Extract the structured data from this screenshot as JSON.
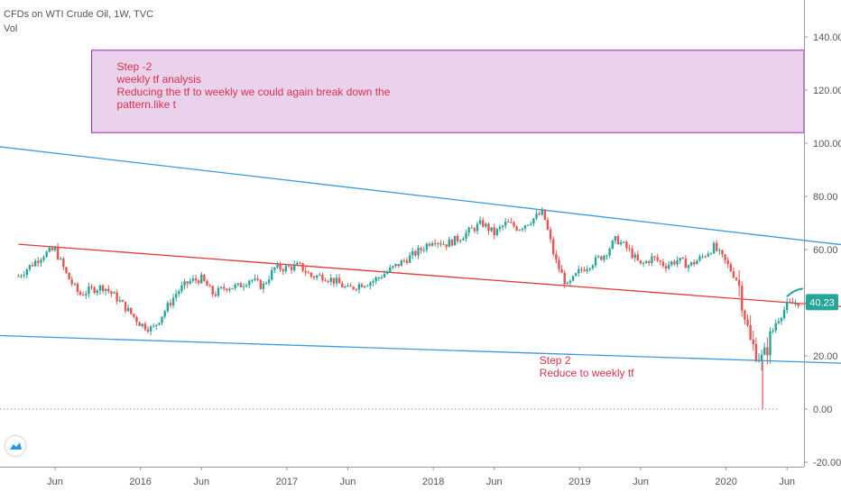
{
  "header": {
    "title": "CFDs on WTI Crude Oil, 1W, TVC",
    "volume_label": "Vol"
  },
  "price_badge": "40.23",
  "colors": {
    "up": "#26a69a",
    "down": "#ef5350",
    "trend_blue": "#3a9ae0",
    "trend_red": "#e53935",
    "note_box_fill": "#ead1ec",
    "note_box_border": "#9c27b0",
    "note_text": "#d8324a",
    "badge": "#26a69a"
  },
  "notes": {
    "box": [
      "Step -2",
      "weekly tf analysis",
      "Reducing the tf  to weekly we could again break down the",
      "pattern.like t"
    ],
    "step2": [
      "Step 2",
      "Reduce to weekly tf"
    ]
  },
  "chart_data": {
    "type": "candlestick",
    "title": "CFDs on WTI Crude Oil, 1W, TVC",
    "x_tick_labels": [
      "Jun",
      "2016",
      "Jun",
      "2017",
      "Jun",
      "2018",
      "Jun",
      "2019",
      "Jun",
      "2020",
      "Jun"
    ],
    "x_tick_dates": [
      "2015-06",
      "2016-01",
      "2016-06",
      "2017-01",
      "2017-06",
      "2018-01",
      "2018-06",
      "2019-01",
      "2019-06",
      "2020-01",
      "2020-06"
    ],
    "y_tick_labels": [
      "140.00",
      "120.00",
      "100.00",
      "80.00",
      "60.00",
      "40.00",
      "20.00",
      "0.00",
      "-20.00"
    ],
    "ylim": [
      -22,
      150
    ],
    "last_price": 40.23,
    "price_path": [
      {
        "t": "2015-03",
        "p": 50
      },
      {
        "t": "2015-04",
        "p": 54
      },
      {
        "t": "2015-05",
        "p": 58
      },
      {
        "t": "2015-06",
        "p": 60
      },
      {
        "t": "2015-07",
        "p": 50
      },
      {
        "t": "2015-08",
        "p": 43
      },
      {
        "t": "2015-09",
        "p": 45
      },
      {
        "t": "2015-10",
        "p": 46
      },
      {
        "t": "2015-11",
        "p": 42
      },
      {
        "t": "2015-12",
        "p": 37
      },
      {
        "t": "2016-01",
        "p": 32
      },
      {
        "t": "2016-02",
        "p": 30
      },
      {
        "t": "2016-03",
        "p": 37
      },
      {
        "t": "2016-04",
        "p": 44
      },
      {
        "t": "2016-05",
        "p": 48
      },
      {
        "t": "2016-06",
        "p": 49
      },
      {
        "t": "2016-07",
        "p": 43
      },
      {
        "t": "2016-08",
        "p": 46
      },
      {
        "t": "2016-09",
        "p": 46
      },
      {
        "t": "2016-10",
        "p": 49
      },
      {
        "t": "2016-11",
        "p": 46
      },
      {
        "t": "2016-12",
        "p": 53
      },
      {
        "t": "2017-01",
        "p": 53
      },
      {
        "t": "2017-02",
        "p": 54
      },
      {
        "t": "2017-03",
        "p": 50
      },
      {
        "t": "2017-04",
        "p": 50
      },
      {
        "t": "2017-05",
        "p": 48
      },
      {
        "t": "2017-06",
        "p": 45
      },
      {
        "t": "2017-07",
        "p": 47
      },
      {
        "t": "2017-08",
        "p": 48
      },
      {
        "t": "2017-09",
        "p": 51
      },
      {
        "t": "2017-10",
        "p": 54
      },
      {
        "t": "2017-11",
        "p": 57
      },
      {
        "t": "2017-12",
        "p": 60
      },
      {
        "t": "2018-01",
        "p": 64
      },
      {
        "t": "2018-02",
        "p": 62
      },
      {
        "t": "2018-03",
        "p": 64
      },
      {
        "t": "2018-04",
        "p": 67
      },
      {
        "t": "2018-05",
        "p": 70
      },
      {
        "t": "2018-06",
        "p": 66
      },
      {
        "t": "2018-07",
        "p": 70
      },
      {
        "t": "2018-08",
        "p": 68
      },
      {
        "t": "2018-09",
        "p": 71
      },
      {
        "t": "2018-10",
        "p": 74
      },
      {
        "t": "2018-11",
        "p": 56
      },
      {
        "t": "2018-12",
        "p": 46
      },
      {
        "t": "2019-01",
        "p": 52
      },
      {
        "t": "2019-02",
        "p": 55
      },
      {
        "t": "2019-03",
        "p": 58
      },
      {
        "t": "2019-04",
        "p": 64
      },
      {
        "t": "2019-05",
        "p": 60
      },
      {
        "t": "2019-06",
        "p": 54
      },
      {
        "t": "2019-07",
        "p": 57
      },
      {
        "t": "2019-08",
        "p": 54
      },
      {
        "t": "2019-09",
        "p": 56
      },
      {
        "t": "2019-10",
        "p": 54
      },
      {
        "t": "2019-11",
        "p": 57
      },
      {
        "t": "2019-12",
        "p": 61
      },
      {
        "t": "2020-01",
        "p": 55
      },
      {
        "t": "2020-02",
        "p": 48
      },
      {
        "t": "2020-03",
        "p": 25
      },
      {
        "t": "2020-04",
        "p": 18
      },
      {
        "t": "2020-05",
        "p": 32
      },
      {
        "t": "2020-06",
        "p": 39
      },
      {
        "t": "2020-07",
        "p": 40.23
      }
    ],
    "trendlines": [
      {
        "color": "blue",
        "from": {
          "t": "2014-11",
          "p": 100
        },
        "to": {
          "t": "2020-12",
          "p": 61
        }
      },
      {
        "color": "red",
        "from": {
          "t": "2015-03",
          "p": 62
        },
        "to": {
          "t": "2020-12",
          "p": 38
        }
      },
      {
        "color": "blue",
        "from": {
          "t": "2014-11",
          "p": 28
        },
        "to": {
          "t": "2020-12",
          "p": 17
        }
      }
    ],
    "zero_line": 0,
    "annotations": [
      {
        "type": "rectangle",
        "from": {
          "t": "2015-09",
          "p": 135
        },
        "to": {
          "t": "2021-01",
          "p": 104
        }
      },
      {
        "type": "text",
        "text": "Step 2\nReduce to weekly tf",
        "at": {
          "t": "2018-10",
          "p": 20
        }
      }
    ]
  }
}
